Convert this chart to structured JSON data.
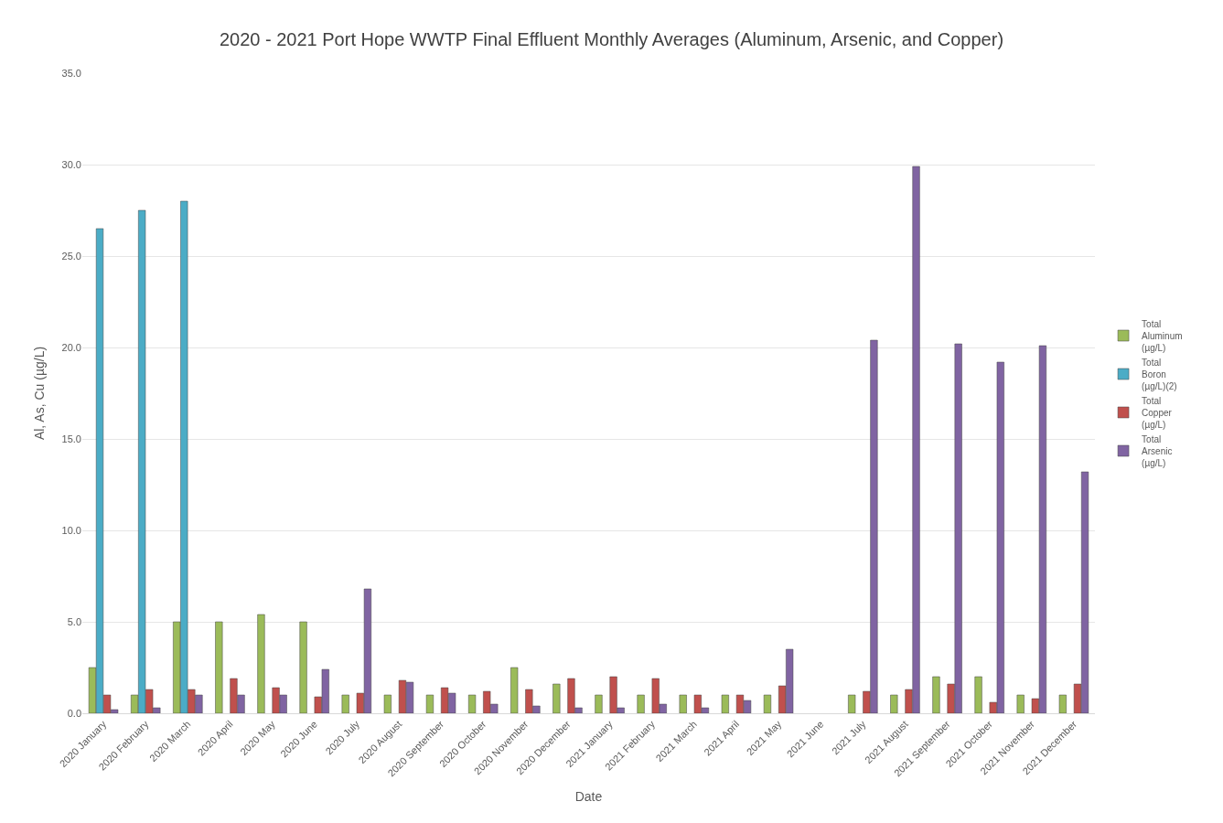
{
  "chart_data": {
    "type": "bar",
    "title": "2020 - 2021 Port Hope WWTP Final Effluent Monthly Averages (Aluminum, Arsenic, and Copper)",
    "xlabel": "Date",
    "ylabel": "Al, As, Cu (µg/L)",
    "categories": [
      "2020 January",
      "2020 February",
      "2020 March",
      "2020 April",
      "2020 May",
      "2020 June",
      "2020 July",
      "2020 August",
      "2020 September",
      "2020 October",
      "2020 November",
      "2020 December",
      "2021 January",
      "2021 February",
      "2021 March",
      "2021 April",
      "2021 May",
      "2021 June",
      "2021 July",
      "2021 August",
      "2021 September",
      "2021 October",
      "2021 November",
      "2021 December"
    ],
    "series": [
      {
        "name": "Total Aluminum (µg/L)",
        "color": "#9bbb59",
        "values": [
          2.5,
          1.0,
          5.0,
          5.0,
          5.4,
          5.0,
          1.0,
          1.0,
          1.0,
          1.0,
          2.5,
          1.6,
          1.0,
          1.0,
          1.0,
          1.0,
          1.0,
          null,
          1.0,
          1.0,
          2.0,
          2.0,
          1.0,
          1.0
        ]
      },
      {
        "name": "Total Boron (µg/L)(2)",
        "color": "#4bacc6",
        "values": [
          26.5,
          27.5,
          28.0,
          null,
          null,
          null,
          null,
          null,
          null,
          null,
          null,
          null,
          null,
          null,
          null,
          null,
          null,
          null,
          null,
          null,
          null,
          null,
          null,
          null
        ]
      },
      {
        "name": "Total Copper (µg/L)",
        "color": "#c0504d",
        "values": [
          1.0,
          1.3,
          1.3,
          1.9,
          1.4,
          0.9,
          1.1,
          1.8,
          1.4,
          1.2,
          1.3,
          1.9,
          2.0,
          1.9,
          1.0,
          1.0,
          1.5,
          null,
          1.2,
          1.3,
          1.6,
          0.6,
          0.8,
          1.6
        ]
      },
      {
        "name": "Total Arsenic (µg/L)",
        "color": "#8064a2",
        "values": [
          0.2,
          0.3,
          1.0,
          1.0,
          1.0,
          2.4,
          6.8,
          1.7,
          1.1,
          0.5,
          0.4,
          0.3,
          0.3,
          0.5,
          0.3,
          0.7,
          3.5,
          null,
          20.4,
          29.9,
          20.2,
          19.2,
          20.1,
          13.2
        ]
      }
    ],
    "ylim": [
      0,
      35
    ],
    "yticks": [
      {
        "value": 0,
        "label": "0.0"
      },
      {
        "value": 5,
        "label": "5.0"
      },
      {
        "value": 10,
        "label": "10.0"
      },
      {
        "value": 15,
        "label": "15.0"
      },
      {
        "value": 20,
        "label": "20.0"
      },
      {
        "value": 25,
        "label": "25.0"
      },
      {
        "value": 30,
        "label": "30.0"
      },
      {
        "value": 35,
        "label": "35.0"
      }
    ],
    "grid": "y",
    "legend": "right"
  }
}
